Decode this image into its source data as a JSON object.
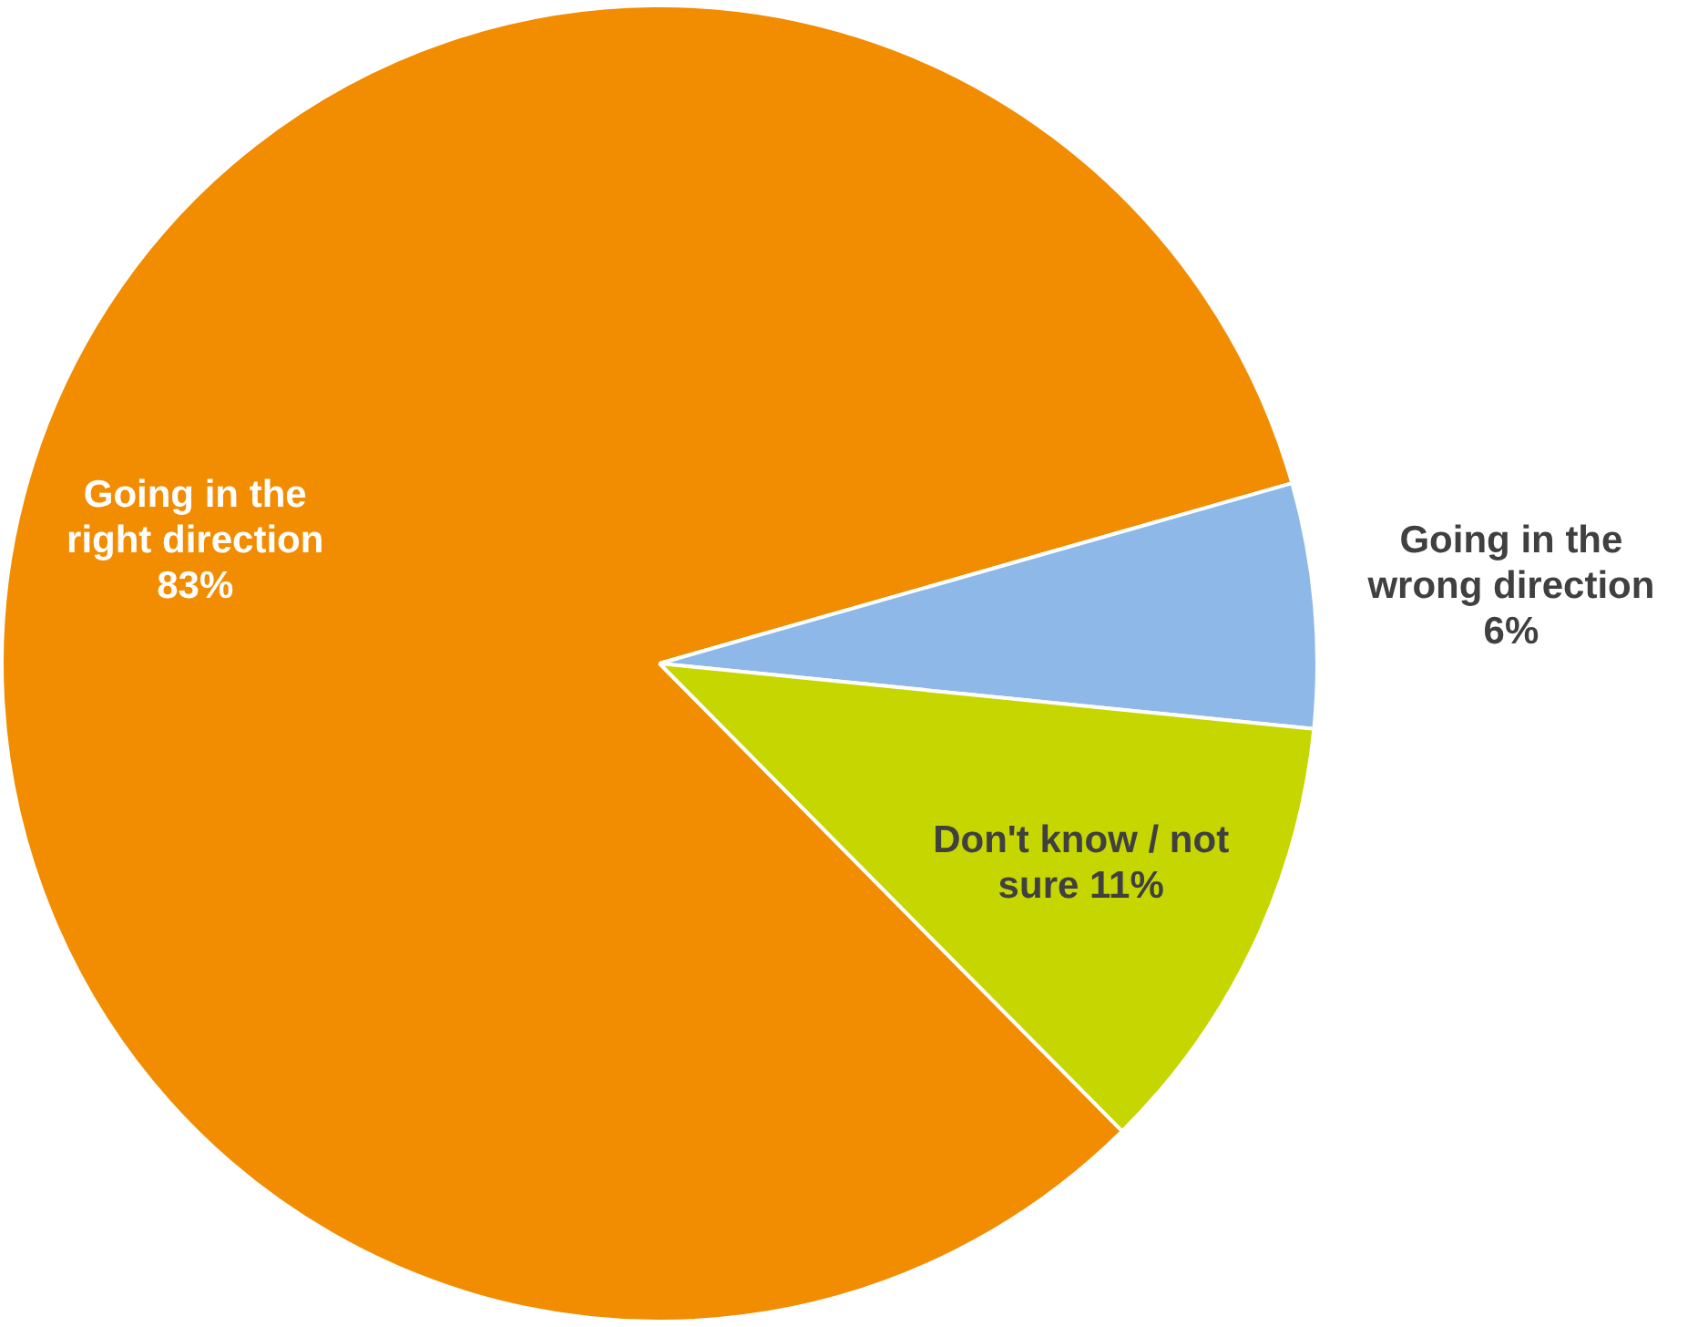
{
  "chart_data": {
    "type": "pie",
    "categories": [
      "Going in the right direction",
      "Going in the wrong direction",
      "Don't know / not sure"
    ],
    "values": [
      83,
      6,
      11
    ],
    "colors": [
      "#f28c00",
      "#8db8e8",
      "#c5d600"
    ],
    "value_labels": [
      "83%",
      "6%",
      "11%"
    ],
    "legend": false
  }
}
